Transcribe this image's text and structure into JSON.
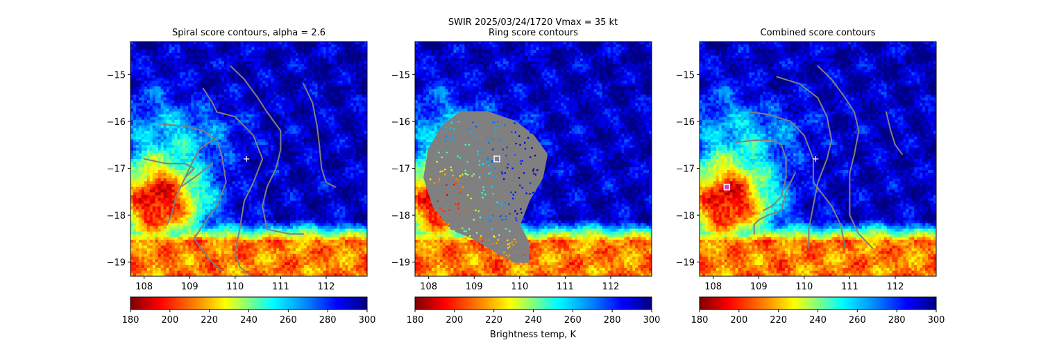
{
  "figure": {
    "suptitle_line1": "SWIR  2025/03/24/1720    Vmax = 35 kt",
    "colorbar_label": "Brightness temp, K"
  },
  "colors": {
    "contour": "#808080",
    "marker": "#ffffff",
    "marker_combined": "#d040d0"
  },
  "chart_data": [
    {
      "type": "heatmap",
      "title": "Spiral score contours, alpha =  2.6",
      "xlim": [
        107.7,
        112.9
      ],
      "ylim": [
        -19.3,
        -14.3
      ],
      "xticks": [
        "108",
        "109",
        "110",
        "111",
        "112"
      ],
      "yticks": [
        "−15",
        "−16",
        "−17",
        "−18",
        "−19"
      ],
      "colorbar": {
        "range": [
          180,
          300
        ],
        "ticks": [
          "180",
          "200",
          "220",
          "240",
          "260",
          "280",
          "300"
        ],
        "colormap": "jet_r"
      },
      "center_marker": {
        "x": 110.25,
        "y": -16.8,
        "shape": "plus"
      },
      "contours": [
        [
          [
            109.9,
            -14.82
          ],
          [
            110.2,
            -15.1
          ],
          [
            110.5,
            -15.5
          ],
          [
            110.7,
            -15.8
          ],
          [
            111.0,
            -16.2
          ],
          [
            111.0,
            -16.6
          ],
          [
            110.9,
            -17.0
          ],
          [
            110.7,
            -17.4
          ],
          [
            110.6,
            -17.8
          ],
          [
            110.7,
            -18.3
          ],
          [
            111.2,
            -18.4
          ],
          [
            111.5,
            -18.4
          ]
        ],
        [
          [
            111.5,
            -15.2
          ],
          [
            111.7,
            -15.6
          ],
          [
            111.8,
            -16.1
          ],
          [
            111.85,
            -16.5
          ],
          [
            111.9,
            -17.0
          ],
          [
            112.0,
            -17.3
          ],
          [
            112.2,
            -17.4
          ]
        ],
        [
          [
            109.3,
            -15.3
          ],
          [
            109.5,
            -15.6
          ],
          [
            109.6,
            -15.8
          ],
          [
            110.0,
            -15.9
          ],
          [
            110.4,
            -16.3
          ],
          [
            110.6,
            -16.8
          ],
          [
            110.4,
            -17.3
          ],
          [
            110.2,
            -17.7
          ],
          [
            110.1,
            -18.3
          ],
          [
            110.0,
            -18.8
          ],
          [
            110.1,
            -19.1
          ],
          [
            110.35,
            -19.3
          ]
        ],
        [
          [
            108.3,
            -16.05
          ],
          [
            108.9,
            -16.1
          ],
          [
            109.3,
            -16.2
          ],
          [
            109.6,
            -16.4
          ],
          [
            109.7,
            -16.7
          ],
          [
            109.8,
            -17.3
          ],
          [
            109.6,
            -17.8
          ],
          [
            109.3,
            -18.2
          ],
          [
            109.1,
            -18.5
          ],
          [
            109.4,
            -18.9
          ],
          [
            109.7,
            -19.2
          ]
        ],
        [
          [
            108.0,
            -16.8
          ],
          [
            108.5,
            -16.9
          ],
          [
            108.9,
            -16.9
          ],
          [
            109.1,
            -17.0
          ],
          [
            108.9,
            -17.2
          ],
          [
            108.7,
            -17.6
          ],
          [
            108.6,
            -18.0
          ],
          [
            108.5,
            -18.2
          ]
        ],
        [
          [
            109.5,
            -16.4
          ],
          [
            109.2,
            -16.6
          ],
          [
            109.0,
            -17.0
          ],
          [
            108.8,
            -17.4
          ],
          [
            109.1,
            -17.2
          ],
          [
            109.5,
            -16.9
          ]
        ]
      ]
    },
    {
      "type": "heatmap",
      "title": "Ring score contours",
      "xlim": [
        107.7,
        112.9
      ],
      "ylim": [
        -19.3,
        -14.3
      ],
      "xticks": [
        "108",
        "109",
        "110",
        "111",
        "112"
      ],
      "yticks": [
        "−15",
        "−16",
        "−17",
        "−18",
        "−19"
      ],
      "colorbar": {
        "range": [
          180,
          300
        ],
        "ticks": [
          "180",
          "200",
          "220",
          "240",
          "260",
          "280",
          "300"
        ],
        "colormap": "jet_r"
      },
      "center_marker": {
        "x": 109.5,
        "y": -16.8,
        "shape": "square"
      },
      "ring_region": [
        [
          108.7,
          -15.8
        ],
        [
          109.3,
          -15.8
        ],
        [
          109.9,
          -16.0
        ],
        [
          110.3,
          -16.3
        ],
        [
          110.6,
          -16.7
        ],
        [
          110.5,
          -17.2
        ],
        [
          110.2,
          -17.7
        ],
        [
          110.0,
          -18.2
        ],
        [
          110.2,
          -18.6
        ],
        [
          110.2,
          -19.0
        ],
        [
          109.9,
          -19.0
        ],
        [
          109.5,
          -18.8
        ],
        [
          109.0,
          -18.5
        ],
        [
          108.5,
          -18.3
        ],
        [
          108.1,
          -17.8
        ],
        [
          107.9,
          -17.2
        ],
        [
          108.0,
          -16.6
        ],
        [
          108.3,
          -16.1
        ]
      ]
    },
    {
      "type": "heatmap",
      "title": "Combined score contours",
      "xlim": [
        107.7,
        112.9
      ],
      "ylim": [
        -19.3,
        -14.3
      ],
      "xticks": [
        "108",
        "109",
        "110",
        "111",
        "112"
      ],
      "yticks": [
        "−15",
        "−16",
        "−17",
        "−18",
        "−19"
      ],
      "colorbar": {
        "range": [
          180,
          300
        ],
        "ticks": [
          "180",
          "200",
          "220",
          "240",
          "260",
          "280",
          "300"
        ],
        "colormap": "jet_r"
      },
      "center_marker": {
        "x": 110.25,
        "y": -16.8,
        "shape": "plus"
      },
      "best_marker": {
        "x": 108.3,
        "y": -17.4,
        "shape": "square"
      },
      "contours": [
        [
          [
            110.3,
            -14.82
          ],
          [
            110.6,
            -15.1
          ],
          [
            110.9,
            -15.5
          ],
          [
            111.1,
            -15.8
          ],
          [
            111.2,
            -16.2
          ],
          [
            111.1,
            -16.7
          ],
          [
            111.0,
            -17.1
          ],
          [
            111.0,
            -17.6
          ],
          [
            111.0,
            -18.0
          ],
          [
            111.2,
            -18.4
          ],
          [
            111.5,
            -18.7
          ]
        ],
        [
          [
            111.8,
            -15.8
          ],
          [
            111.9,
            -16.2
          ],
          [
            112.0,
            -16.5
          ],
          [
            112.15,
            -16.7
          ]
        ],
        [
          [
            109.4,
            -15.05
          ],
          [
            109.9,
            -15.2
          ],
          [
            110.3,
            -15.5
          ],
          [
            110.5,
            -15.9
          ],
          [
            110.6,
            -16.4
          ],
          [
            110.5,
            -16.8
          ],
          [
            110.3,
            -17.3
          ],
          [
            110.2,
            -17.8
          ],
          [
            110.1,
            -18.3
          ],
          [
            110.1,
            -18.7
          ]
        ],
        [
          [
            108.8,
            -15.8
          ],
          [
            109.2,
            -15.85
          ],
          [
            109.7,
            -16.0
          ],
          [
            110.0,
            -16.3
          ],
          [
            110.2,
            -16.8
          ],
          [
            110.2,
            -17.3
          ],
          [
            110.6,
            -17.8
          ],
          [
            110.8,
            -18.2
          ],
          [
            110.9,
            -18.7
          ]
        ],
        [
          [
            108.5,
            -16.45
          ],
          [
            108.9,
            -16.4
          ],
          [
            109.3,
            -16.4
          ],
          [
            109.5,
            -16.5
          ],
          [
            109.6,
            -16.8
          ],
          [
            109.6,
            -17.2
          ],
          [
            109.5,
            -17.6
          ],
          [
            109.3,
            -17.8
          ],
          [
            109.1,
            -17.9
          ]
        ],
        [
          [
            109.8,
            -17.1
          ],
          [
            109.6,
            -17.5
          ],
          [
            109.5,
            -17.9
          ],
          [
            109.2,
            -18.0
          ],
          [
            109.0,
            -18.1
          ],
          [
            108.9,
            -18.2
          ],
          [
            108.9,
            -18.4
          ]
        ]
      ]
    }
  ]
}
